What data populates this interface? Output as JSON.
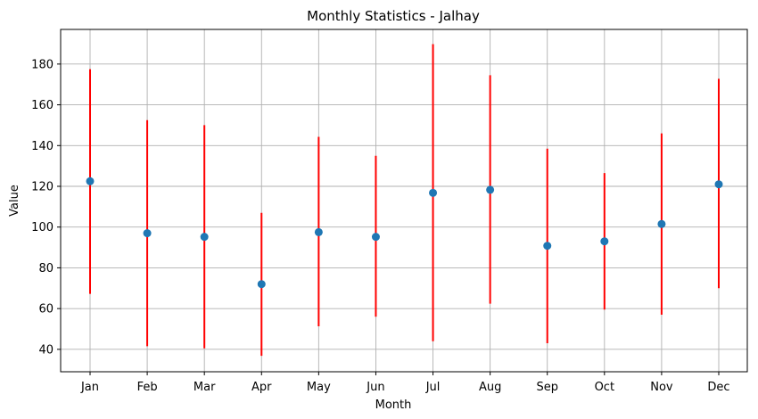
{
  "chart_data": {
    "type": "scatter",
    "title": "Monthly Statistics - Jalhay",
    "xlabel": "Month",
    "ylabel": "Value",
    "categories": [
      "Jan",
      "Feb",
      "Mar",
      "Apr",
      "May",
      "Jun",
      "Jul",
      "Aug",
      "Sep",
      "Oct",
      "Nov",
      "Dec"
    ],
    "values": [
      122.5,
      97,
      95.2,
      72,
      97.5,
      95.2,
      116.8,
      118.3,
      90.8,
      93,
      101.5,
      121
    ],
    "range_low": [
      67.2,
      41.5,
      40.5,
      36.8,
      51.3,
      56,
      44,
      62.4,
      43,
      59.5,
      57,
      70
    ],
    "range_high": [
      177.5,
      152.5,
      150,
      107,
      144.3,
      135,
      189.8,
      174.5,
      138.5,
      126.5,
      146,
      172.8
    ],
    "ylim": [
      29,
      197
    ],
    "yticks": [
      40,
      60,
      80,
      100,
      120,
      140,
      160,
      180
    ],
    "grid": true,
    "colors": {
      "marker": "#1f77b4",
      "range": "#ff0000",
      "grid": "#b0b0b0"
    }
  }
}
